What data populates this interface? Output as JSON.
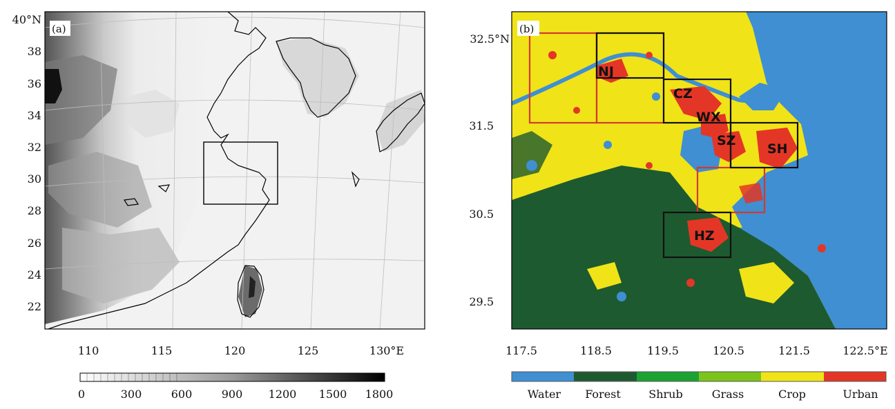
{
  "panel_a": {
    "tag": "(a)",
    "y_ticks": [
      "40°N",
      "38",
      "36",
      "34",
      "32",
      "30",
      "28",
      "26",
      "24",
      "22"
    ],
    "x_ticks": [
      "110",
      "115",
      "120",
      "125",
      "130°E"
    ],
    "colorbar": {
      "ticks": [
        "0",
        "300",
        "600",
        "900",
        "1200",
        "1500",
        "1800"
      ],
      "min": 0,
      "max": 1800
    }
  },
  "panel_b": {
    "tag": "(b)",
    "y_ticks": [
      "32.5°N",
      "31.5",
      "30.5",
      "29.5"
    ],
    "x_ticks": [
      "117.5",
      "118.5",
      "119.5",
      "120.5",
      "121.5",
      "122.5°E"
    ],
    "cities": [
      "NJ",
      "CZ",
      "WX",
      "SZ",
      "SH",
      "HZ"
    ],
    "legend": [
      {
        "label": "Water",
        "color": "#3f8fd2"
      },
      {
        "label": "Forest",
        "color": "#1e5a30"
      },
      {
        "label": "Shrub",
        "color": "#1aa332"
      },
      {
        "label": "Grass",
        "color": "#7cc41c"
      },
      {
        "label": "Crop",
        "color": "#f0e318"
      },
      {
        "label": "Urban",
        "color": "#e43626"
      }
    ]
  }
}
